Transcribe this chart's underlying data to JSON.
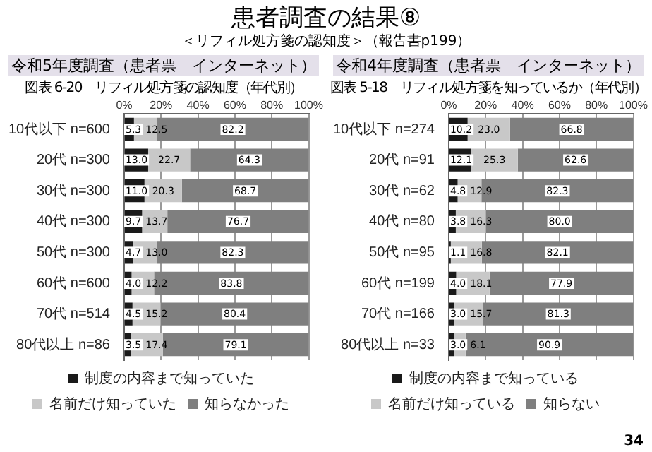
{
  "chart_data": [
    {
      "type": "bar",
      "orientation": "horizontal",
      "stacked": true,
      "title": "図表 6-20　リフィル処方箋の認知度（年代別）",
      "subtitle": "令和5年度調査（患者票　インターネット）",
      "annotations": [
        "患者調査の結果⑧",
        "＜リフィル処方箋の認知度＞（報告書p199）"
      ],
      "categories": [
        "10代以下 n=600",
        "20代 n=300",
        "30代 n=300",
        "40代 n=300",
        "50代 n=300",
        "60代 n=600",
        "70代 n=514",
        "80代以上 n=86"
      ],
      "series": [
        {
          "name": "制度の内容まで知っていた",
          "color": "#1a1a1a",
          "values": [
            5.3,
            13.0,
            11.0,
            9.7,
            4.7,
            4.0,
            4.5,
            3.5
          ],
          "value_labels": [
            "5.3",
            "13.0",
            "11.0",
            "9.7",
            "4.7",
            "4.0",
            "4.5",
            "3.5"
          ]
        },
        {
          "name": "名前だけ知っていた",
          "color": "#c8c8c8",
          "values": [
            12.5,
            22.7,
            20.3,
            13.7,
            13.0,
            12.2,
            15.2,
            17.4
          ],
          "value_labels": [
            "12.5",
            "22.7",
            "20.3",
            "13.7",
            "13.0",
            "12.2",
            "15.2",
            "17.4"
          ]
        },
        {
          "name": "知らなかった",
          "color": "#7f7f7f",
          "values": [
            82.2,
            64.3,
            68.7,
            76.7,
            82.3,
            83.8,
            80.4,
            79.1
          ],
          "value_labels": [
            "82.2",
            "64.3",
            "68.7",
            "76.7",
            "82.3",
            "83.8",
            "80.4",
            "79.1"
          ]
        }
      ],
      "xlim": [
        0,
        100
      ],
      "xticks": [
        {
          "value": 0,
          "label": "0%"
        },
        {
          "value": 20,
          "label": "20%"
        },
        {
          "value": 40,
          "label": "40%"
        },
        {
          "value": 60,
          "label": "60%"
        },
        {
          "value": 80,
          "label": "80%"
        },
        {
          "value": 100,
          "label": "100%"
        }
      ],
      "grid": "x",
      "legend": "bottom"
    },
    {
      "type": "bar",
      "orientation": "horizontal",
      "stacked": true,
      "title": "図表 5-18　リフィル処方箋を知っているか（年代別）",
      "subtitle": "令和4年度調査（患者票　インターネット）",
      "annotations": [
        "34"
      ],
      "categories": [
        "10代以下 n=274",
        "20代 n=91",
        "30代 n=62",
        "40代 n=80",
        "50代 n=95",
        "60代 n=199",
        "70代 n=166",
        "80代以上 n=33"
      ],
      "series": [
        {
          "name": "制度の内容まで知っている",
          "color": "#1a1a1a",
          "values": [
            10.2,
            12.1,
            4.8,
            3.8,
            1.1,
            4.0,
            3.0,
            3.0
          ],
          "value_labels": [
            "10.2",
            "12.1",
            "4.8",
            "3.8",
            "1.1",
            "4.0",
            "3.0",
            "3.0"
          ]
        },
        {
          "name": "名前だけ知っている",
          "color": "#c8c8c8",
          "values": [
            23.0,
            25.3,
            12.9,
            16.3,
            16.8,
            18.1,
            15.7,
            6.1
          ],
          "value_labels": [
            "23.0",
            "25.3",
            "12.9",
            "16.3",
            "16.8",
            "18.1",
            "15.7",
            "6.1"
          ]
        },
        {
          "name": "知らない",
          "color": "#7f7f7f",
          "values": [
            66.8,
            62.6,
            82.3,
            80.0,
            82.1,
            77.9,
            81.3,
            90.9
          ],
          "value_labels": [
            "66.8",
            "62.6",
            "82.3",
            "80.0",
            "82.1",
            "77.9",
            "81.3",
            "90.9"
          ]
        }
      ],
      "xlim": [
        0,
        100
      ],
      "xticks": [
        {
          "value": 0,
          "label": "0%"
        },
        {
          "value": 20,
          "label": "20%"
        },
        {
          "value": 40,
          "label": "40%"
        },
        {
          "value": 60,
          "label": "60%"
        },
        {
          "value": 80,
          "label": "80%"
        },
        {
          "value": 100,
          "label": "100%"
        }
      ],
      "grid": "x",
      "legend": "bottom"
    }
  ]
}
